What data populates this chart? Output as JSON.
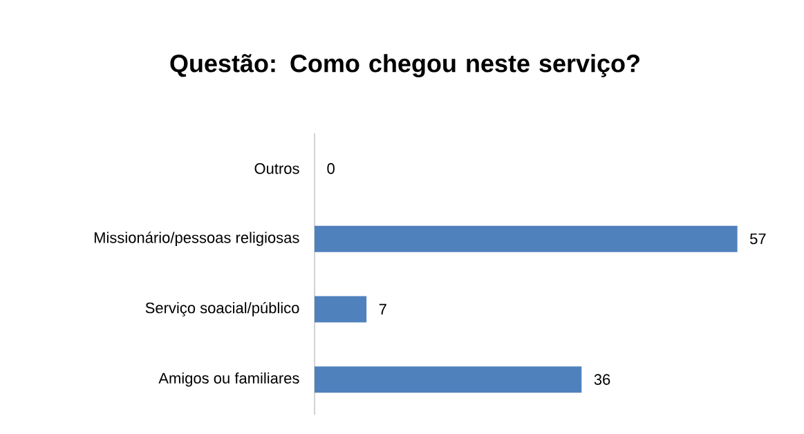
{
  "chart_data": {
    "type": "bar",
    "orientation": "horizontal",
    "title": "Questão: Como chegou neste serviço?",
    "categories": [
      "Outros",
      "Missionário/pessoas religiosas",
      "Serviço soacial/público",
      "Amigos ou familiares"
    ],
    "values": [
      0,
      57,
      7,
      36
    ],
    "color": "#4f81bd",
    "data_labels": true
  }
}
